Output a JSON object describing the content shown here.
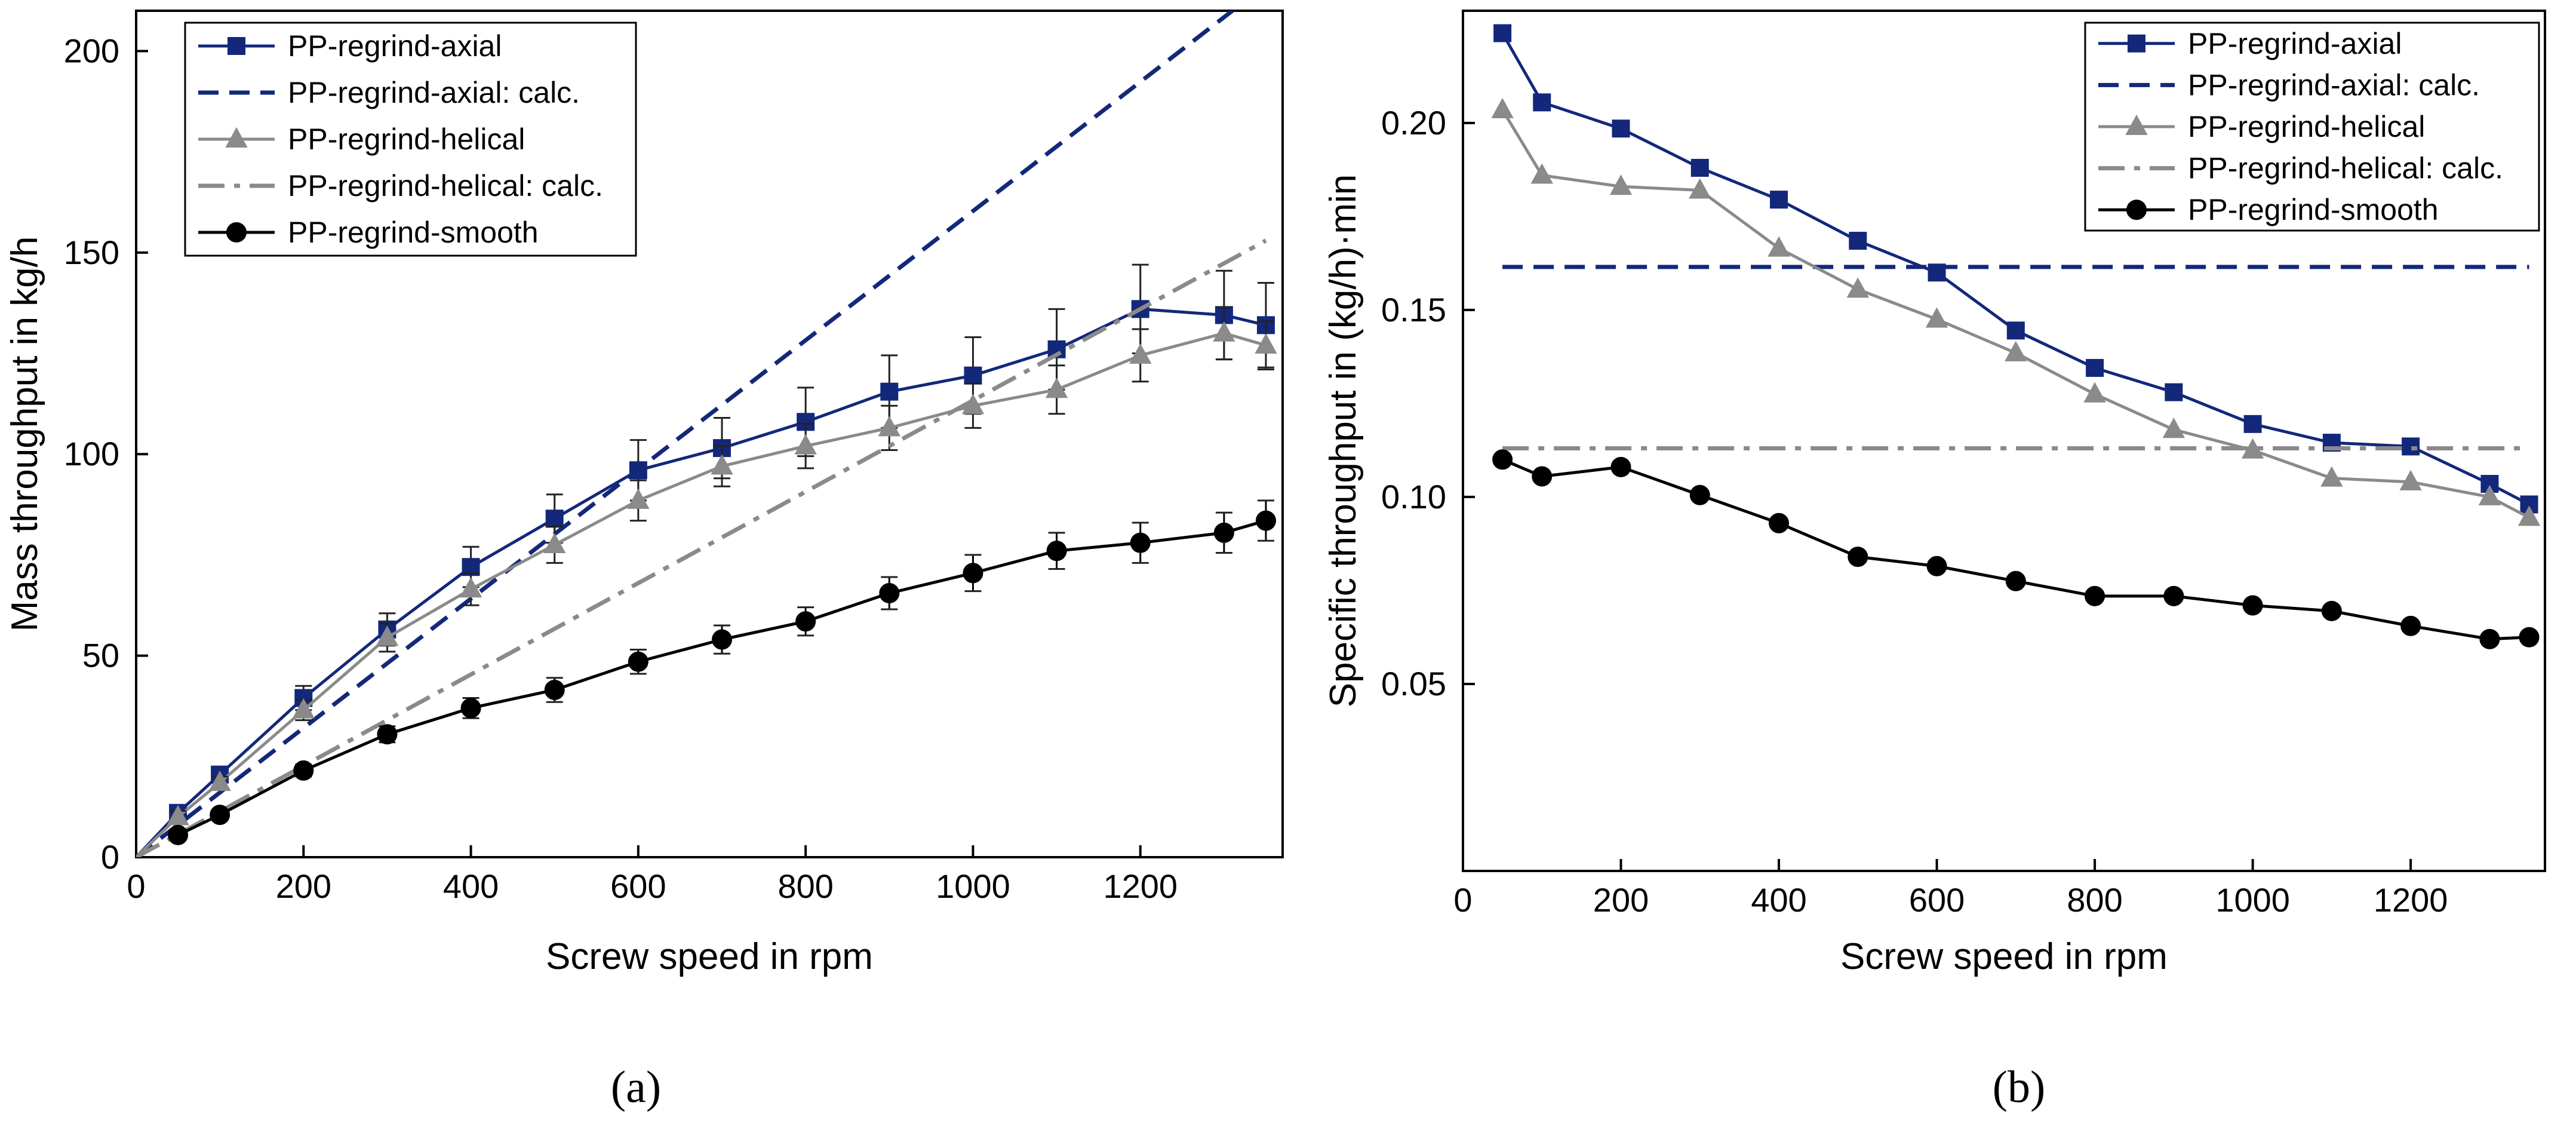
{
  "colors": {
    "axial": "#13287a",
    "helical": "#8a8a8a",
    "smooth": "#000000"
  },
  "chart_data": [
    {
      "type": "line",
      "panel_label": "(a)",
      "xlabel": "Screw speed in rpm",
      "ylabel": "Mass throughput in kg/h",
      "xlim": [
        0,
        1370
      ],
      "ylim": [
        0,
        210
      ],
      "xticks": [
        0,
        200,
        400,
        600,
        800,
        1000,
        1200
      ],
      "yticks": [
        0,
        50,
        100,
        150,
        200
      ],
      "legend_position": "top-left",
      "series": [
        {
          "name": "PP-regrind-axial",
          "style": "line-square",
          "color": "#13287a",
          "x": [
            0,
            50,
            100,
            200,
            300,
            400,
            500,
            600,
            700,
            800,
            900,
            1000,
            1100,
            1200,
            1300,
            1350
          ],
          "y": [
            0,
            11,
            20.5,
            39.5,
            56.5,
            72,
            84,
            96,
            101.5,
            108,
            115.5,
            119.5,
            126,
            136,
            134.5,
            132
          ],
          "err": [
            0,
            1.5,
            1.5,
            3,
            4,
            5,
            6,
            7.5,
            7.5,
            8.5,
            9,
            9.5,
            10,
            11,
            11,
            10.5
          ]
        },
        {
          "name": "PP-regrind-axial: calc.",
          "style": "dashed",
          "color": "#13287a",
          "x": [
            0,
            1310
          ],
          "y": [
            0,
            210
          ]
        },
        {
          "name": "PP-regrind-helical",
          "style": "line-triangle",
          "color": "#8a8a8a",
          "x": [
            0,
            50,
            100,
            200,
            300,
            400,
            500,
            600,
            700,
            800,
            900,
            1000,
            1100,
            1200,
            1300,
            1350
          ],
          "y": [
            0,
            10,
            18.5,
            36.5,
            54.5,
            66.5,
            77.5,
            88.5,
            97,
            102,
            106.5,
            112,
            116,
            124.5,
            130,
            127
          ],
          "err": [
            0,
            1.5,
            1.5,
            2.5,
            3.5,
            4,
            4.5,
            5,
            5,
            5.5,
            5.5,
            5.5,
            6,
            6.5,
            6.5,
            6
          ]
        },
        {
          "name": "PP-regrind-helical: calc.",
          "style": "dashdot",
          "color": "#8a8a8a",
          "x": [
            0,
            1350
          ],
          "y": [
            0,
            153
          ]
        },
        {
          "name": "PP-regrind-smooth",
          "style": "line-circle",
          "color": "#000000",
          "x": [
            50,
            100,
            200,
            300,
            400,
            500,
            600,
            700,
            800,
            900,
            1000,
            1100,
            1200,
            1300,
            1350
          ],
          "y": [
            5.5,
            10.5,
            21.5,
            30.5,
            37,
            41.5,
            48.5,
            54,
            58.5,
            65.5,
            70.5,
            76,
            78,
            80.5,
            83.5
          ],
          "err": [
            1,
            1,
            1.5,
            2,
            2.5,
            3,
            3,
            3.5,
            3.5,
            4,
            4.5,
            4.5,
            5,
            5,
            5
          ]
        }
      ]
    },
    {
      "type": "line",
      "panel_label": "(b)",
      "xlabel": "Screw speed in rpm",
      "ylabel": "Specific throughput in (kg/h)·min",
      "xlim": [
        0,
        1370
      ],
      "ylim": [
        0,
        0.23
      ],
      "xticks": [
        0,
        200,
        400,
        600,
        800,
        1000,
        1200
      ],
      "yticks": [
        0.05,
        0.1,
        0.15,
        0.2
      ],
      "ytick_labels": [
        "0.05",
        "0.10",
        "0.15",
        "0.20"
      ],
      "legend_position": "top-right",
      "series": [
        {
          "name": "PP-regrind-axial",
          "style": "line-square",
          "color": "#13287a",
          "x": [
            50,
            100,
            200,
            300,
            400,
            500,
            600,
            700,
            800,
            900,
            1000,
            1100,
            1200,
            1300,
            1350
          ],
          "y": [
            0.224,
            0.2055,
            0.1985,
            0.188,
            0.1795,
            0.1685,
            0.16,
            0.1445,
            0.1345,
            0.128,
            0.1195,
            0.1145,
            0.1135,
            0.1035,
            0.098
          ]
        },
        {
          "name": "PP-regrind-axial: calc.",
          "style": "dashed",
          "color": "#13287a",
          "x": [
            50,
            1350
          ],
          "y": [
            0.1615,
            0.1615
          ]
        },
        {
          "name": "PP-regrind-helical",
          "style": "line-triangle",
          "color": "#8a8a8a",
          "x": [
            50,
            100,
            200,
            300,
            400,
            500,
            600,
            700,
            800,
            900,
            1000,
            1100,
            1200,
            1300,
            1350
          ],
          "y": [
            0.2035,
            0.186,
            0.183,
            0.182,
            0.1665,
            0.1555,
            0.1475,
            0.1385,
            0.1275,
            0.118,
            0.1125,
            0.105,
            0.104,
            0.1,
            0.0945
          ]
        },
        {
          "name": "PP-regrind-helical: calc.",
          "style": "dashdot",
          "color": "#8a8a8a",
          "x": [
            50,
            1350
          ],
          "y": [
            0.113,
            0.113
          ]
        },
        {
          "name": "PP-regrind-smooth",
          "style": "line-circle",
          "color": "#000000",
          "x": [
            50,
            100,
            200,
            300,
            400,
            500,
            600,
            700,
            800,
            900,
            1000,
            1100,
            1200,
            1300,
            1350
          ],
          "y": [
            0.11,
            0.1055,
            0.108,
            0.1005,
            0.093,
            0.084,
            0.0815,
            0.0775,
            0.0735,
            0.0735,
            0.071,
            0.0695,
            0.0655,
            0.062,
            0.0625
          ]
        }
      ]
    }
  ]
}
